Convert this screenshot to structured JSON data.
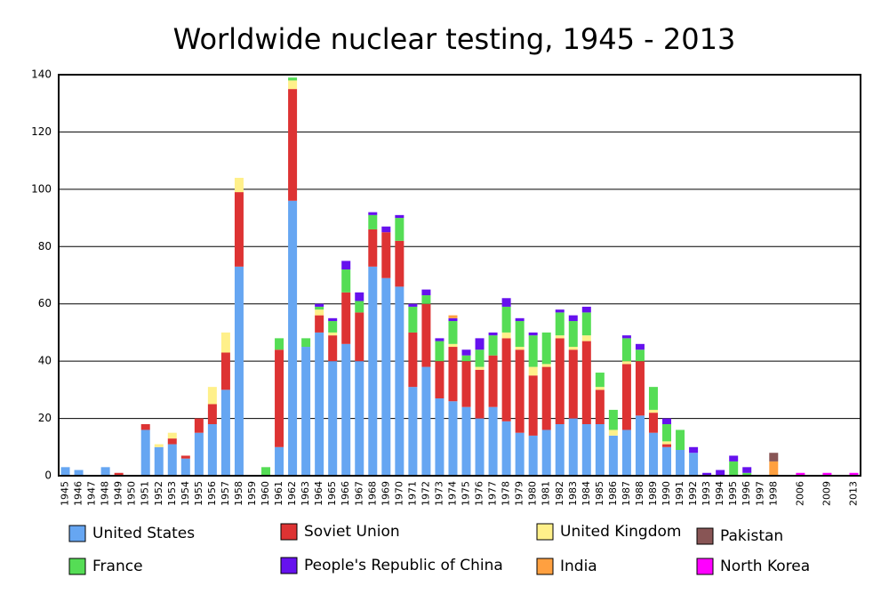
{
  "chart_data": {
    "type": "stacked-bar",
    "title": "Worldwide nuclear testing, 1945 - 2013",
    "categories": [
      "1945",
      "1946",
      "1947",
      "1948",
      "1949",
      "1950",
      "1951",
      "1952",
      "1953",
      "1954",
      "1955",
      "1956",
      "1957",
      "1958",
      "1959",
      "1960",
      "1961",
      "1962",
      "1963",
      "1964",
      "1965",
      "1966",
      "1967",
      "1968",
      "1969",
      "1970",
      "1971",
      "1972",
      "1973",
      "1974",
      "1975",
      "1976",
      "1977",
      "1978",
      "1979",
      "1980",
      "1981",
      "1982",
      "1983",
      "1984",
      "1985",
      "1986",
      "1987",
      "1988",
      "1989",
      "1990",
      "1991",
      "1992",
      "1993",
      "1994",
      "1995",
      "1996",
      "1997",
      "1998",
      null,
      "2006",
      null,
      "2009",
      null,
      "2013"
    ],
    "series": [
      {
        "name": "United States",
        "color": "#66a6f2",
        "values": [
          3,
          2,
          0,
          3,
          0,
          0,
          16,
          10,
          11,
          6,
          15,
          18,
          30,
          73,
          0,
          0,
          10,
          96,
          45,
          50,
          40,
          46,
          40,
          73,
          69,
          66,
          31,
          38,
          27,
          26,
          24,
          20,
          24,
          19,
          15,
          14,
          16,
          18,
          20,
          18,
          18,
          14,
          16,
          21,
          15,
          10,
          9,
          8,
          0,
          0,
          0,
          0,
          0,
          0,
          null,
          0,
          null,
          0,
          null,
          0
        ]
      },
      {
        "name": "Soviet Union",
        "color": "#dd3333",
        "values": [
          0,
          0,
          0,
          0,
          1,
          0,
          2,
          0,
          2,
          1,
          5,
          7,
          13,
          26,
          0,
          0,
          34,
          39,
          0,
          6,
          9,
          18,
          17,
          13,
          16,
          16,
          19,
          22,
          13,
          19,
          16,
          17,
          18,
          29,
          29,
          21,
          22,
          30,
          24,
          29,
          12,
          0,
          23,
          19,
          7,
          1,
          0,
          0,
          0,
          0,
          0,
          0,
          0,
          0,
          null,
          0,
          null,
          0,
          null,
          0
        ]
      },
      {
        "name": "United Kingdom",
        "color": "#fff08a",
        "values": [
          0,
          0,
          0,
          0,
          0,
          0,
          0,
          1,
          2,
          0,
          0,
          6,
          7,
          5,
          0,
          0,
          0,
          3,
          0,
          2,
          1,
          0,
          0,
          0,
          0,
          0,
          0,
          0,
          0,
          1,
          0,
          1,
          0,
          2,
          1,
          3,
          1,
          1,
          1,
          2,
          1,
          2,
          1,
          0,
          1,
          1,
          0,
          0,
          0,
          0,
          0,
          0,
          0,
          0,
          null,
          0,
          null,
          0,
          null,
          0
        ]
      },
      {
        "name": "France",
        "color": "#55dd55",
        "values": [
          0,
          0,
          0,
          0,
          0,
          0,
          0,
          0,
          0,
          0,
          0,
          0,
          0,
          0,
          0,
          3,
          4,
          1,
          3,
          1,
          4,
          8,
          4,
          5,
          0,
          8,
          9,
          3,
          7,
          8,
          2,
          6,
          7,
          9,
          9,
          11,
          11,
          8,
          9,
          8,
          5,
          7,
          8,
          4,
          8,
          6,
          7,
          0,
          0,
          0,
          5,
          1,
          0,
          0,
          null,
          0,
          null,
          0,
          null,
          0
        ]
      },
      {
        "name": "People's Republic of China",
        "color": "#6611ee",
        "values": [
          0,
          0,
          0,
          0,
          0,
          0,
          0,
          0,
          0,
          0,
          0,
          0,
          0,
          0,
          0,
          0,
          0,
          0,
          0,
          1,
          1,
          3,
          3,
          1,
          2,
          1,
          1,
          2,
          1,
          1,
          2,
          4,
          1,
          3,
          1,
          1,
          0,
          1,
          2,
          2,
          0,
          0,
          1,
          2,
          0,
          2,
          0,
          2,
          1,
          2,
          2,
          2,
          0,
          0,
          null,
          0,
          null,
          0,
          null,
          0
        ]
      },
      {
        "name": "India",
        "color": "#ffa040",
        "values": [
          0,
          0,
          0,
          0,
          0,
          0,
          0,
          0,
          0,
          0,
          0,
          0,
          0,
          0,
          0,
          0,
          0,
          0,
          0,
          0,
          0,
          0,
          0,
          0,
          0,
          0,
          0,
          0,
          0,
          1,
          0,
          0,
          0,
          0,
          0,
          0,
          0,
          0,
          0,
          0,
          0,
          0,
          0,
          0,
          0,
          0,
          0,
          0,
          0,
          0,
          0,
          0,
          0,
          5,
          null,
          0,
          null,
          0,
          null,
          0
        ]
      },
      {
        "name": "Pakistan",
        "color": "#885555",
        "values": [
          0,
          0,
          0,
          0,
          0,
          0,
          0,
          0,
          0,
          0,
          0,
          0,
          0,
          0,
          0,
          0,
          0,
          0,
          0,
          0,
          0,
          0,
          0,
          0,
          0,
          0,
          0,
          0,
          0,
          0,
          0,
          0,
          0,
          0,
          0,
          0,
          0,
          0,
          0,
          0,
          0,
          0,
          0,
          0,
          0,
          0,
          0,
          0,
          0,
          0,
          0,
          0,
          0,
          3,
          null,
          0,
          null,
          0,
          null,
          0
        ]
      },
      {
        "name": "North Korea",
        "color": "#ff00ff",
        "values": [
          0,
          0,
          0,
          0,
          0,
          0,
          0,
          0,
          0,
          0,
          0,
          0,
          0,
          0,
          0,
          0,
          0,
          0,
          0,
          0,
          0,
          0,
          0,
          0,
          0,
          0,
          0,
          0,
          0,
          0,
          0,
          0,
          0,
          0,
          0,
          0,
          0,
          0,
          0,
          0,
          0,
          0,
          0,
          0,
          0,
          0,
          0,
          0,
          0,
          0,
          0,
          0,
          0,
          0,
          null,
          1,
          null,
          1,
          null,
          1
        ]
      }
    ],
    "ylim": [
      0,
      140
    ],
    "yticks": [
      0,
      20,
      40,
      60,
      80,
      100,
      120,
      140
    ],
    "grid": true
  }
}
